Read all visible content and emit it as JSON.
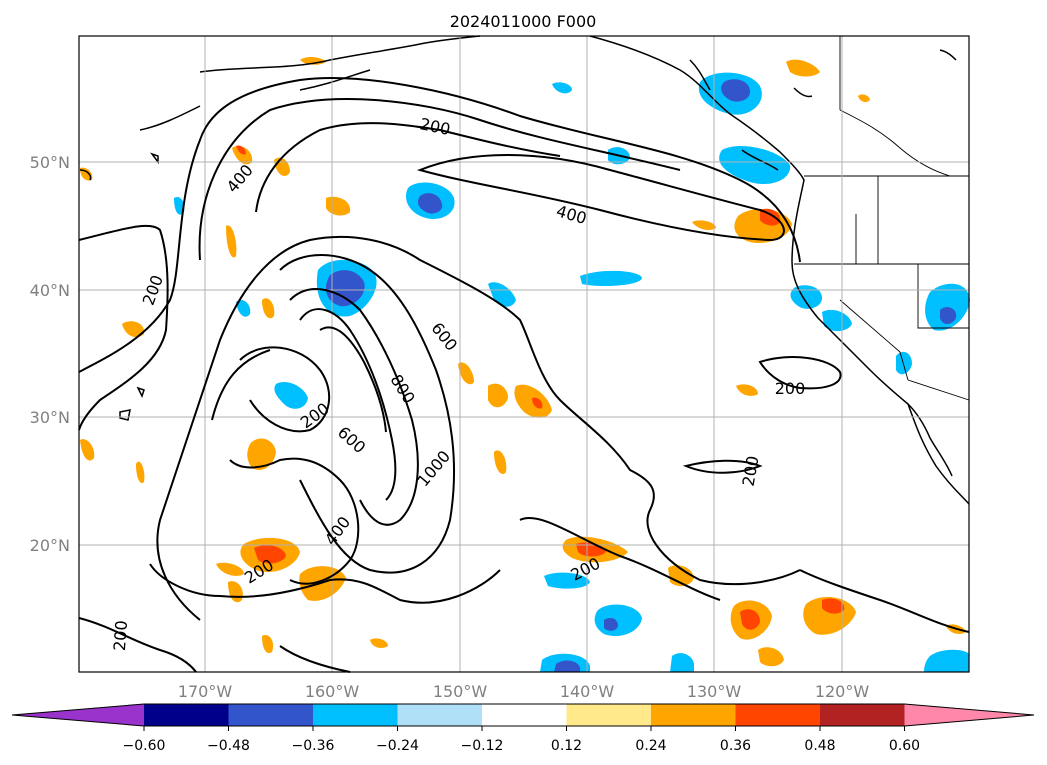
{
  "figure": {
    "title": "2024011000 F000"
  },
  "axes": {
    "latitude_labels": [
      "50°N",
      "40°N",
      "30°N",
      "20°N"
    ],
    "longitude_labels": [
      "170°W",
      "160°W",
      "150°W",
      "140°W",
      "130°W",
      "120°W"
    ]
  },
  "contours": {
    "labels": [
      "200",
      "400",
      "200",
      "400",
      "200",
      "200",
      "600",
      "800",
      "200",
      "600",
      "1000",
      "400",
      "200",
      "200",
      "200",
      "200"
    ]
  },
  "colorbar": {
    "tick_labels": [
      "−0.60",
      "−0.48",
      "−0.36",
      "−0.24",
      "−0.12",
      "0.12",
      "0.24",
      "0.36",
      "0.48",
      "0.60"
    ],
    "colors": [
      "#9933cc",
      "#00008b",
      "#3355cc",
      "#00bfff",
      "#b0e0f8",
      "#ffffff",
      "#ffe98a",
      "#ffa500",
      "#ff4500",
      "#b22222",
      "#ff88aa"
    ]
  }
}
